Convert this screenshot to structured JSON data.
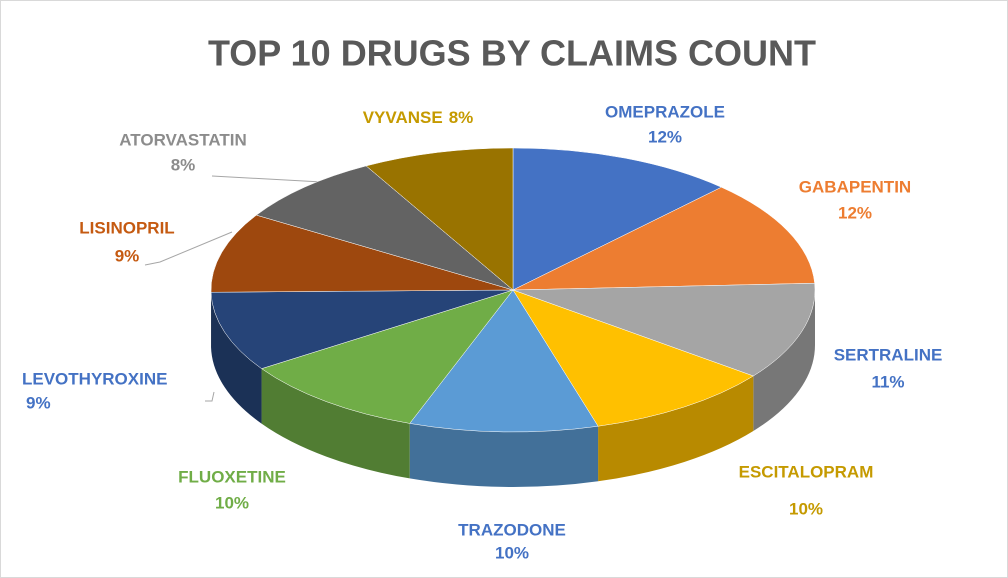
{
  "chart_data": {
    "type": "pie3d",
    "title": "TOP 10 DRUGS BY CLAIMS COUNT",
    "categories": [
      "OMEPRAZOLE",
      "GABAPENTIN",
      "SERTRALINE",
      "ESCITALOPRAM",
      "TRAZODONE",
      "FLUOXETINE",
      "LEVOTHYROXINE",
      "LISINOPRIL",
      "ATORVASTATIN",
      "VYVANSE"
    ],
    "values": [
      12,
      12,
      11,
      10,
      10,
      10,
      9,
      9,
      8,
      8
    ],
    "value_labels": [
      "12%",
      "12%",
      "11%",
      "10%",
      "10%",
      "10%",
      "9%",
      "9%",
      "8%",
      "8%"
    ],
    "colors": [
      "#4472c4",
      "#ed7d31",
      "#a5a5a5",
      "#ffc000",
      "#5b9bd5",
      "#70ad47",
      "#264478",
      "#9e480e",
      "#636363",
      "#997300"
    ],
    "label_colors": [
      "#4472c4",
      "#ed7d31",
      "#4472c4",
      "#c59a00",
      "#4472c4",
      "#70ad47",
      "#4472c4",
      "#c55a11",
      "#8c8c8c",
      "#c59a00"
    ]
  }
}
